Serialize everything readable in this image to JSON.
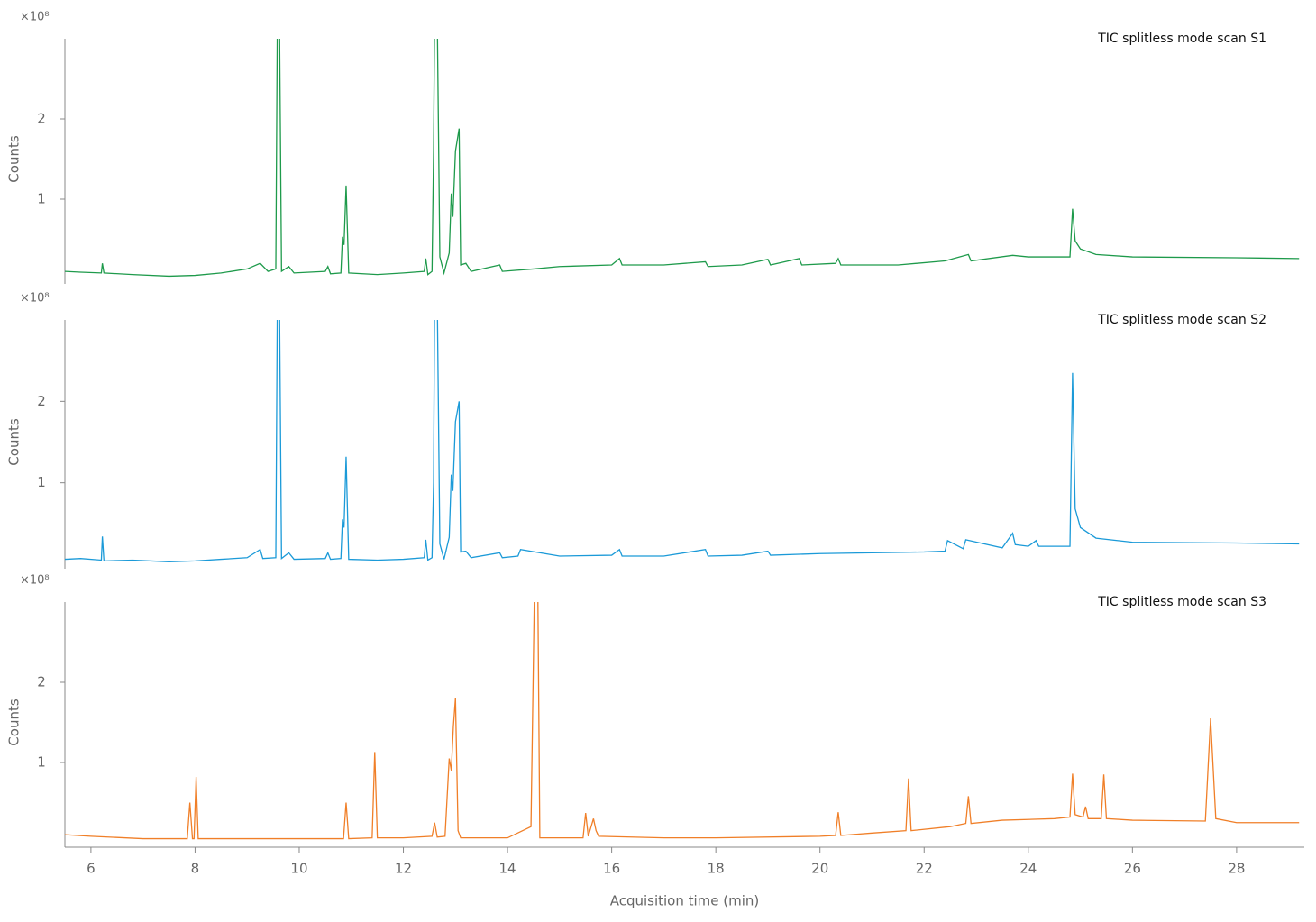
{
  "chart_data": [
    {
      "type": "line",
      "y_multiplier": "×10⁸",
      "y_label": "Counts",
      "xlim": [
        5.5,
        29.3
      ],
      "ylim": [
        0,
        3
      ],
      "yticks": [
        1,
        2
      ],
      "x": [
        5.5,
        5.8,
        6.2,
        6.22,
        6.25,
        6.8,
        7.5,
        8,
        8.5,
        9,
        9.25,
        9.4,
        9.55,
        9.58,
        9.62,
        9.66,
        9.8,
        9.9,
        10.5,
        10.55,
        10.6,
        10.8,
        10.83,
        10.86,
        10.9,
        10.95,
        11.5,
        12,
        12.4,
        12.43,
        12.47,
        12.55,
        12.58,
        12.6,
        12.65,
        12.7,
        12.78,
        12.88,
        12.92,
        12.95,
        13.0,
        13.07,
        13.1,
        13.2,
        13.3,
        13.85,
        13.9,
        14.5,
        15,
        16,
        16.15,
        16.2,
        17,
        17.8,
        17.85,
        18.5,
        19,
        19.05,
        19.6,
        19.65,
        20.3,
        20.35,
        20.4,
        21.5,
        22.4,
        22.85,
        22.9,
        23.7,
        24,
        24.5,
        24.8,
        24.85,
        24.9,
        25.0,
        25.3,
        26,
        28,
        29.2
      ],
      "series": [
        {
          "name": "TIC splitless mode scan S1",
          "color": "#1e9a4b",
          "values": [
            0.1,
            0.09,
            0.08,
            0.2,
            0.08,
            0.06,
            0.04,
            0.05,
            0.08,
            0.13,
            0.2,
            0.1,
            0.13,
            3.3,
            3.3,
            0.1,
            0.16,
            0.08,
            0.1,
            0.16,
            0.07,
            0.08,
            0.53,
            0.43,
            1.17,
            0.08,
            0.06,
            0.08,
            0.1,
            0.26,
            0.06,
            0.1,
            1.6,
            3.3,
            3.3,
            0.28,
            0.08,
            0.33,
            1.07,
            0.78,
            1.6,
            1.88,
            0.18,
            0.2,
            0.1,
            0.18,
            0.1,
            0.13,
            0.16,
            0.18,
            0.26,
            0.18,
            0.18,
            0.22,
            0.16,
            0.18,
            0.25,
            0.18,
            0.26,
            0.18,
            0.2,
            0.26,
            0.18,
            0.18,
            0.23,
            0.31,
            0.23,
            0.3,
            0.28,
            0.28,
            0.28,
            0.88,
            0.48,
            0.38,
            0.31,
            0.28,
            0.27,
            0.26
          ]
        }
      ]
    },
    {
      "type": "line",
      "y_multiplier": "×10⁸",
      "y_label": "Counts",
      "xlim": [
        5.5,
        29.3
      ],
      "ylim": [
        0,
        3
      ],
      "yticks": [
        1,
        2
      ],
      "x": [
        5.5,
        5.8,
        6.2,
        6.22,
        6.25,
        6.8,
        7.5,
        8,
        8.5,
        9,
        9.25,
        9.3,
        9.55,
        9.58,
        9.62,
        9.66,
        9.8,
        9.9,
        10.5,
        10.55,
        10.6,
        10.8,
        10.83,
        10.86,
        10.9,
        10.95,
        11.5,
        12,
        12.4,
        12.43,
        12.47,
        12.55,
        12.58,
        12.6,
        12.65,
        12.7,
        12.78,
        12.88,
        12.92,
        12.95,
        13.0,
        13.07,
        13.1,
        13.2,
        13.3,
        13.85,
        13.9,
        14.2,
        14.25,
        15,
        16,
        16.15,
        16.2,
        17,
        17.8,
        17.85,
        18.5,
        19,
        19.05,
        20,
        21,
        22,
        22.4,
        22.45,
        22.75,
        22.8,
        23.5,
        23.7,
        23.75,
        24,
        24.15,
        24.2,
        24.8,
        24.85,
        24.9,
        25.0,
        25.3,
        26,
        28,
        29.2
      ],
      "series": [
        {
          "name": "TIC splitless mode scan S2",
          "color": "#1b9ad8",
          "values": [
            0.06,
            0.07,
            0.05,
            0.34,
            0.04,
            0.05,
            0.03,
            0.04,
            0.06,
            0.08,
            0.18,
            0.07,
            0.08,
            3.3,
            3.3,
            0.07,
            0.14,
            0.06,
            0.07,
            0.14,
            0.06,
            0.07,
            0.55,
            0.45,
            1.32,
            0.06,
            0.05,
            0.06,
            0.08,
            0.3,
            0.05,
            0.08,
            1.0,
            3.3,
            3.3,
            0.25,
            0.06,
            0.33,
            1.1,
            0.9,
            1.75,
            2.0,
            0.15,
            0.16,
            0.08,
            0.14,
            0.08,
            0.1,
            0.18,
            0.1,
            0.11,
            0.18,
            0.1,
            0.1,
            0.18,
            0.1,
            0.11,
            0.16,
            0.11,
            0.13,
            0.14,
            0.15,
            0.16,
            0.29,
            0.19,
            0.3,
            0.2,
            0.38,
            0.24,
            0.22,
            0.29,
            0.22,
            0.22,
            2.35,
            0.68,
            0.45,
            0.32,
            0.27,
            0.26,
            0.25
          ]
        }
      ]
    },
    {
      "type": "line",
      "y_multiplier": "×10⁸",
      "y_label": "Counts",
      "x_label": "Acquisition time (min)",
      "xlim": [
        5.5,
        29.3
      ],
      "ylim": [
        0,
        3
      ],
      "yticks": [
        1,
        2
      ],
      "xticks": [
        6,
        8,
        10,
        12,
        14,
        16,
        18,
        20,
        22,
        24,
        26,
        28
      ],
      "x": [
        5.5,
        6,
        7,
        7.85,
        7.9,
        7.95,
        7.98,
        8.02,
        8.06,
        9,
        10,
        10.85,
        10.9,
        10.95,
        11.4,
        11.45,
        11.5,
        12,
        12.55,
        12.6,
        12.65,
        12.8,
        12.88,
        12.92,
        12.96,
        13.0,
        13.05,
        13.1,
        14,
        14.45,
        14.52,
        14.58,
        14.62,
        15,
        15.45,
        15.5,
        15.55,
        15.65,
        15.7,
        15.75,
        17,
        18,
        20,
        20.3,
        20.35,
        20.4,
        21,
        21.65,
        21.7,
        21.75,
        22.5,
        22.8,
        22.85,
        22.9,
        23.5,
        24.5,
        24.8,
        24.85,
        24.9,
        25.05,
        25.1,
        25.15,
        25.4,
        25.45,
        25.5,
        26,
        27.4,
        27.5,
        27.6,
        28,
        29.2
      ],
      "series": [
        {
          "name": "TIC splitless mode scan S3",
          "color": "#f07f28",
          "values": [
            0.1,
            0.08,
            0.05,
            0.05,
            0.5,
            0.05,
            0.05,
            0.82,
            0.05,
            0.05,
            0.05,
            0.05,
            0.5,
            0.05,
            0.06,
            1.13,
            0.06,
            0.06,
            0.08,
            0.25,
            0.07,
            0.08,
            1.05,
            0.9,
            1.45,
            1.8,
            0.15,
            0.06,
            0.06,
            0.2,
            3.3,
            3.3,
            0.06,
            0.06,
            0.06,
            0.37,
            0.08,
            0.3,
            0.15,
            0.08,
            0.06,
            0.06,
            0.08,
            0.09,
            0.38,
            0.09,
            0.12,
            0.15,
            0.8,
            0.15,
            0.2,
            0.24,
            0.58,
            0.24,
            0.28,
            0.3,
            0.32,
            0.86,
            0.35,
            0.32,
            0.45,
            0.3,
            0.3,
            0.85,
            0.3,
            0.28,
            0.27,
            1.55,
            0.3,
            0.25,
            0.25
          ]
        }
      ]
    }
  ]
}
